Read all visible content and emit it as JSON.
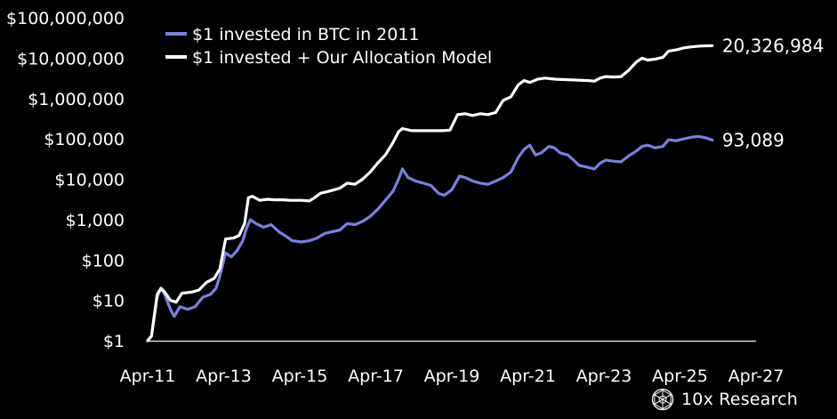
{
  "chart_data": {
    "type": "line",
    "y_scale": "log",
    "ylim": [
      1,
      100000000
    ],
    "y_ticks": [
      1,
      10,
      100,
      1000,
      10000,
      100000,
      1000000,
      10000000,
      100000000
    ],
    "y_tick_labels": [
      "$1",
      "$10",
      "$100",
      "$1,000",
      "$10,000",
      "$100,000",
      "$1,000,000",
      "$10,000,000",
      "$100,000,000"
    ],
    "x_ticks": [
      2011.25,
      2013.25,
      2015.25,
      2017.25,
      2019.25,
      2021.25,
      2023.25,
      2025.25,
      2027.25
    ],
    "x_tick_labels": [
      "Apr-11",
      "Apr-13",
      "Apr-15",
      "Apr-17",
      "Apr-19",
      "Apr-21",
      "Apr-23",
      "Apr-25",
      "Apr-27"
    ],
    "xlim": [
      2011.25,
      2027.25
    ],
    "legend_position": "top-left",
    "series": [
      {
        "name": "$1 invested in BTC in 2011",
        "color": "#7b7fe0",
        "end_label": "93,089",
        "points": [
          [
            2011.25,
            1
          ],
          [
            2011.35,
            1.3
          ],
          [
            2011.5,
            12
          ],
          [
            2011.6,
            20
          ],
          [
            2011.7,
            14
          ],
          [
            2011.85,
            6
          ],
          [
            2011.95,
            4
          ],
          [
            2012.1,
            7
          ],
          [
            2012.3,
            6
          ],
          [
            2012.5,
            7
          ],
          [
            2012.7,
            12
          ],
          [
            2012.9,
            14
          ],
          [
            2013.05,
            20
          ],
          [
            2013.15,
            40
          ],
          [
            2013.3,
            150
          ],
          [
            2013.45,
            120
          ],
          [
            2013.6,
            170
          ],
          [
            2013.75,
            300
          ],
          [
            2013.85,
            600
          ],
          [
            2013.95,
            1000
          ],
          [
            2014.1,
            800
          ],
          [
            2014.3,
            650
          ],
          [
            2014.5,
            750
          ],
          [
            2014.7,
            500
          ],
          [
            2014.9,
            380
          ],
          [
            2015.05,
            300
          ],
          [
            2015.3,
            280
          ],
          [
            2015.5,
            300
          ],
          [
            2015.7,
            350
          ],
          [
            2015.9,
            450
          ],
          [
            2016.1,
            500
          ],
          [
            2016.3,
            550
          ],
          [
            2016.5,
            800
          ],
          [
            2016.7,
            750
          ],
          [
            2016.9,
            900
          ],
          [
            2017.1,
            1200
          ],
          [
            2017.3,
            1800
          ],
          [
            2017.5,
            3000
          ],
          [
            2017.7,
            5000
          ],
          [
            2017.85,
            10000
          ],
          [
            2017.95,
            18000
          ],
          [
            2018.1,
            11000
          ],
          [
            2018.3,
            9000
          ],
          [
            2018.5,
            8000
          ],
          [
            2018.7,
            7000
          ],
          [
            2018.9,
            4500
          ],
          [
            2019.05,
            4000
          ],
          [
            2019.25,
            5500
          ],
          [
            2019.45,
            12000
          ],
          [
            2019.6,
            11000
          ],
          [
            2019.8,
            9000
          ],
          [
            2020.0,
            8000
          ],
          [
            2020.2,
            7500
          ],
          [
            2020.4,
            9000
          ],
          [
            2020.6,
            11000
          ],
          [
            2020.8,
            15000
          ],
          [
            2021.0,
            35000
          ],
          [
            2021.15,
            55000
          ],
          [
            2021.3,
            70000
          ],
          [
            2021.45,
            40000
          ],
          [
            2021.6,
            45000
          ],
          [
            2021.8,
            65000
          ],
          [
            2021.95,
            60000
          ],
          [
            2022.1,
            45000
          ],
          [
            2022.3,
            40000
          ],
          [
            2022.45,
            30000
          ],
          [
            2022.6,
            22000
          ],
          [
            2022.8,
            20000
          ],
          [
            2023.0,
            18000
          ],
          [
            2023.15,
            25000
          ],
          [
            2023.3,
            30000
          ],
          [
            2023.5,
            28000
          ],
          [
            2023.7,
            27000
          ],
          [
            2023.9,
            38000
          ],
          [
            2024.1,
            50000
          ],
          [
            2024.25,
            65000
          ],
          [
            2024.4,
            70000
          ],
          [
            2024.6,
            60000
          ],
          [
            2024.8,
            65000
          ],
          [
            2024.95,
            95000
          ],
          [
            2025.15,
            90000
          ],
          [
            2025.35,
            100000
          ],
          [
            2025.55,
            110000
          ],
          [
            2025.75,
            115000
          ],
          [
            2025.95,
            105000
          ],
          [
            2026.1,
            93089
          ]
        ]
      },
      {
        "name": "$1 invested + Our Allocation Model",
        "color": "#ffffff",
        "end_label": "20,326,984",
        "points": [
          [
            2011.25,
            1
          ],
          [
            2011.35,
            1.3
          ],
          [
            2011.5,
            14
          ],
          [
            2011.6,
            20
          ],
          [
            2011.7,
            16
          ],
          [
            2011.85,
            10
          ],
          [
            2012.0,
            9
          ],
          [
            2012.15,
            15
          ],
          [
            2012.4,
            16
          ],
          [
            2012.6,
            18
          ],
          [
            2012.8,
            28
          ],
          [
            2013.0,
            35
          ],
          [
            2013.15,
            60
          ],
          [
            2013.3,
            330
          ],
          [
            2013.5,
            350
          ],
          [
            2013.65,
            400
          ],
          [
            2013.8,
            800
          ],
          [
            2013.9,
            3500
          ],
          [
            2014.0,
            3800
          ],
          [
            2014.2,
            3000
          ],
          [
            2014.4,
            3200
          ],
          [
            2014.6,
            3100
          ],
          [
            2014.8,
            3100
          ],
          [
            2015.0,
            3000
          ],
          [
            2015.3,
            3000
          ],
          [
            2015.5,
            2900
          ],
          [
            2015.6,
            3300
          ],
          [
            2015.8,
            4500
          ],
          [
            2016.0,
            5000
          ],
          [
            2016.3,
            6000
          ],
          [
            2016.5,
            8000
          ],
          [
            2016.7,
            7500
          ],
          [
            2016.9,
            10000
          ],
          [
            2017.1,
            15000
          ],
          [
            2017.3,
            25000
          ],
          [
            2017.5,
            40000
          ],
          [
            2017.7,
            80000
          ],
          [
            2017.85,
            150000
          ],
          [
            2017.95,
            180000
          ],
          [
            2018.2,
            160000
          ],
          [
            2018.6,
            160000
          ],
          [
            2019.0,
            160000
          ],
          [
            2019.2,
            165000
          ],
          [
            2019.4,
            400000
          ],
          [
            2019.6,
            420000
          ],
          [
            2019.8,
            380000
          ],
          [
            2020.0,
            420000
          ],
          [
            2020.2,
            400000
          ],
          [
            2020.4,
            450000
          ],
          [
            2020.6,
            900000
          ],
          [
            2020.8,
            1100000
          ],
          [
            2021.0,
            2200000
          ],
          [
            2021.15,
            2800000
          ],
          [
            2021.3,
            2500000
          ],
          [
            2021.5,
            3000000
          ],
          [
            2021.7,
            3200000
          ],
          [
            2021.85,
            3100000
          ],
          [
            2022.0,
            3000000
          ],
          [
            2022.4,
            2900000
          ],
          [
            2022.8,
            2800000
          ],
          [
            2023.0,
            2700000
          ],
          [
            2023.15,
            3200000
          ],
          [
            2023.3,
            3500000
          ],
          [
            2023.5,
            3400000
          ],
          [
            2023.7,
            3500000
          ],
          [
            2023.9,
            5000000
          ],
          [
            2024.1,
            8000000
          ],
          [
            2024.25,
            10000000
          ],
          [
            2024.4,
            9000000
          ],
          [
            2024.6,
            9500000
          ],
          [
            2024.8,
            10500000
          ],
          [
            2024.95,
            15000000
          ],
          [
            2025.15,
            16000000
          ],
          [
            2025.35,
            18000000
          ],
          [
            2025.55,
            19000000
          ],
          [
            2025.8,
            20000000
          ],
          [
            2026.1,
            20326984
          ]
        ]
      }
    ]
  },
  "footer": {
    "brand_name": "10x Research"
  }
}
